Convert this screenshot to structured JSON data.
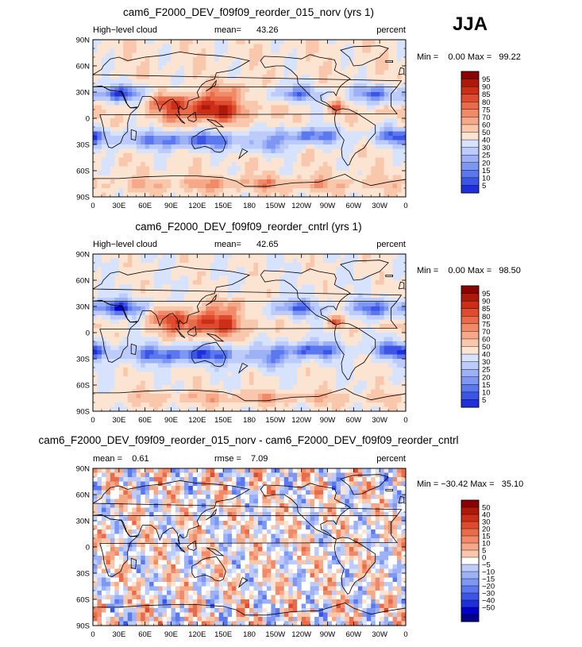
{
  "season": "JJA",
  "tick_labels": {
    "lat": [
      "90N",
      "60N",
      "30N",
      "0",
      "30S",
      "60S",
      "90S"
    ],
    "lon": [
      "0",
      "30E",
      "60E",
      "90E",
      "120E",
      "150E",
      "180",
      "150W",
      "120W",
      "90W",
      "60W",
      "30W",
      "0"
    ]
  },
  "colors": {
    "filled_palette": [
      "#00008b",
      "#0000c8",
      "#1f2fdc",
      "#3c55e6",
      "#5c78ee",
      "#7e97f2",
      "#9db1f6",
      "#bccbfa",
      "#d7e2fc",
      "#fbe4d2",
      "#f8c7ac",
      "#f5a989",
      "#f08a68",
      "#ea6b4a",
      "#df4b2f",
      "#cc2e18",
      "#ae1a0a",
      "#8b0000"
    ],
    "diff_palette": [
      "#00008b",
      "#0000c8",
      "#1f2fdc",
      "#3c55e6",
      "#5c78ee",
      "#7e97f2",
      "#9db1f6",
      "#bccbfa",
      "#d7e2fc",
      "#ffffff",
      "#fbe4d2",
      "#f8c7ac",
      "#f5a989",
      "#f08a68",
      "#ea6b4a",
      "#df4b2f",
      "#cc2e18",
      "#ae1a0a",
      "#8b0000"
    ],
    "coast": "#000000"
  },
  "chart_data": [
    {
      "type": "heatmap",
      "title": "cam6_F2000_DEV_f09f09_reorder_015_norv (yrs 1)",
      "left_label": "High−level cloud",
      "mean_label": "mean=",
      "mean_value": "43.26",
      "units": "percent",
      "minmax_text": "Min =    0.00 Max =   99.22",
      "min": 0.0,
      "max": 99.22,
      "colorbar_levels": [
        "95",
        "90",
        "85",
        "80",
        "75",
        "70",
        "60",
        "50",
        "40",
        "30",
        "25",
        "20",
        "15",
        "10",
        "5"
      ],
      "field_bias": 3.0,
      "lon_range": [
        0,
        360
      ],
      "lat_range": [
        -90,
        90
      ]
    },
    {
      "type": "heatmap",
      "title": "cam6_F2000_DEV_f09f09_reorder_cntrl (yrs 1)",
      "left_label": "High−level cloud",
      "mean_label": "mean=",
      "mean_value": "42.65",
      "units": "percent",
      "minmax_text": "Min =    0.00 Max =   98.50",
      "min": 0.0,
      "max": 98.5,
      "colorbar_levels": [
        "95",
        "90",
        "85",
        "80",
        "75",
        "70",
        "60",
        "50",
        "40",
        "30",
        "25",
        "20",
        "15",
        "10",
        "5"
      ],
      "field_bias": 0.0,
      "lon_range": [
        0,
        360
      ],
      "lat_range": [
        -90,
        90
      ]
    },
    {
      "type": "heatmap",
      "title": "cam6_F2000_DEV_f09f09_reorder_015_norv - cam6_F2000_DEV_f09f09_reorder_cntrl",
      "left_label": "mean =    0.61",
      "mean_label": "rmse =",
      "mean_value": "7.09",
      "units": "percent",
      "minmax_text": "Min = −30.42 Max =   35.10",
      "min": -30.42,
      "max": 35.1,
      "colorbar_levels": [
        "50",
        "40",
        "30",
        "20",
        "15",
        "10",
        "5",
        "0",
        "−5",
        "−10",
        "−15",
        "−20",
        "−30",
        "−40",
        "−50"
      ],
      "diff_mean": 0.61,
      "diff_rmse": 7.09,
      "lon_range": [
        0,
        360
      ],
      "lat_range": [
        -90,
        90
      ]
    }
  ]
}
